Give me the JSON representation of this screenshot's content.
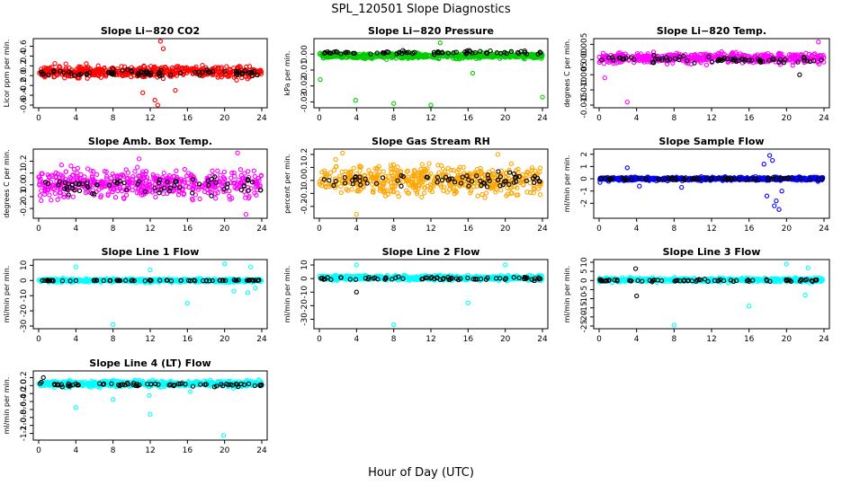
{
  "figure": {
    "title": "SPL_120501  Slope Diagnostics",
    "xlabel": "Hour of Day (UTC)"
  },
  "colors": {
    "black": "#000000",
    "red": "#ff0000",
    "green": "#00cc00",
    "magenta": "#ff00ff",
    "orange": "#ffa500",
    "blue": "#0000ff",
    "cyan": "#00ffff"
  },
  "chart_data": [
    {
      "type": "scatter",
      "title": "Slope Li−820 CO2",
      "ylabel": "Licor ppm per min.",
      "xlim": [
        0,
        24
      ],
      "xticks": [
        0,
        4,
        8,
        12,
        16,
        20,
        24
      ],
      "ylim": [
        -0.6,
        0.7
      ],
      "yticks": [
        -0.6,
        -0.4,
        -0.2,
        0.0,
        0.2,
        0.4,
        0.6
      ],
      "ytick_labels": [
        "-0.6",
        "-0.4",
        "-0.2",
        "0.0",
        "0.2",
        "0.4",
        "0.6"
      ],
      "series": [
        {
          "color": "#ff0000",
          "center": 0.08,
          "spread": 0.2,
          "outliers": [
            [
              13.1,
              0.72
            ],
            [
              13.4,
              0.55
            ],
            [
              12.5,
              -0.5
            ],
            [
              12.8,
              -0.62
            ],
            [
              11.2,
              -0.35
            ],
            [
              14.7,
              -0.3
            ]
          ]
        },
        {
          "color": "#000000",
          "center": 0.06,
          "spread": 0.12,
          "outliers": []
        }
      ]
    },
    {
      "type": "scatter",
      "title": "Slope Li−820 Pressure",
      "ylabel": "kPa per min.",
      "xlim": [
        0,
        24
      ],
      "xticks": [
        0,
        4,
        8,
        12,
        16,
        20,
        24
      ],
      "ylim": [
        -0.032,
        0.008
      ],
      "yticks": [
        -0.03,
        -0.02,
        -0.01,
        0.0
      ],
      "ytick_labels": [
        "-0.03",
        "-0.02",
        "-0.01",
        "0.00"
      ],
      "series": [
        {
          "color": "#00cc00",
          "center": -0.001,
          "spread": 0.003,
          "outliers": [
            [
              3.9,
              -0.029
            ],
            [
              8.0,
              -0.031
            ],
            [
              12.0,
              -0.032
            ],
            [
              24.0,
              -0.027
            ],
            [
              0.1,
              -0.016
            ],
            [
              16.5,
              -0.012
            ],
            [
              13.0,
              0.007
            ]
          ]
        },
        {
          "color": "#000000",
          "center": 0.001,
          "spread": 0.002,
          "outliers": []
        }
      ]
    },
    {
      "type": "scatter",
      "title": "Slope Li−820 Temp.",
      "ylabel": "degrees C per min.",
      "xlim": [
        0,
        24
      ],
      "xticks": [
        0,
        4,
        8,
        12,
        16,
        20,
        24
      ],
      "ylim": [
        -0.015,
        0.006
      ],
      "yticks": [
        -0.015,
        -0.01,
        -0.005,
        0.0,
        0.005
      ],
      "ytick_labels": [
        "-0.015",
        "-0.010",
        "-0.005",
        "0.000",
        "0.005"
      ],
      "series": [
        {
          "color": "#ff00ff",
          "center": 0.0005,
          "spread": 0.0028,
          "outliers": [
            [
              3.0,
              -0.014
            ],
            [
              0.6,
              -0.006
            ],
            [
              23.4,
              0.0058
            ]
          ]
        },
        {
          "color": "#000000",
          "center": 0.0,
          "spread": 0.0018,
          "outliers": [
            [
              21.4,
              -0.005
            ]
          ]
        }
      ]
    },
    {
      "type": "scatter",
      "title": "Slope Amb. Box Temp.",
      "ylabel": "degrees C per min.",
      "xlim": [
        0,
        24
      ],
      "xticks": [
        0,
        4,
        8,
        12,
        16,
        20,
        24
      ],
      "ylim": [
        -0.26,
        0.28
      ],
      "yticks": [
        -0.2,
        -0.1,
        0.0,
        0.1,
        0.2
      ],
      "ytick_labels": [
        "-0.2",
        "-0.1",
        "0.0",
        "0.1",
        "0.2"
      ],
      "series": [
        {
          "color": "#ff00ff",
          "center": 0.01,
          "spread": 0.19,
          "outliers": [
            [
              22.3,
              -0.25
            ],
            [
              21.4,
              0.27
            ],
            [
              10.8,
              0.22
            ]
          ]
        },
        {
          "color": "#000000",
          "center": 0.0,
          "spread": 0.13,
          "outliers": []
        }
      ]
    },
    {
      "type": "scatter",
      "title": "Slope Gas Stream RH",
      "ylabel": "percent per min.",
      "xlim": [
        0,
        24
      ],
      "xticks": [
        0,
        4,
        8,
        12,
        16,
        20,
        24
      ],
      "ylim": [
        -0.27,
        0.22
      ],
      "yticks": [
        -0.2,
        -0.1,
        0.0,
        0.1,
        0.2
      ],
      "ytick_labels": [
        "-0.2",
        "-0.1",
        "0.0",
        "0.1",
        "0.2"
      ],
      "series": [
        {
          "color": "#ffa500",
          "center": 0.0,
          "spread": 0.19,
          "outliers": [
            [
              4.0,
              -0.26
            ],
            [
              2.5,
              0.21
            ],
            [
              19.2,
              0.2
            ]
          ]
        },
        {
          "color": "#000000",
          "center": 0.0,
          "spread": 0.1,
          "outliers": []
        }
      ]
    },
    {
      "type": "scatter",
      "title": "Slope Sample Flow",
      "ylabel": "ml/min per min.",
      "xlim": [
        0,
        24
      ],
      "xticks": [
        0,
        4,
        8,
        12,
        16,
        20,
        24
      ],
      "ylim": [
        -3.0,
        2.2
      ],
      "yticks": [
        -2,
        -1,
        0,
        1,
        2
      ],
      "ytick_labels": [
        "-2",
        "-1",
        "0",
        "1",
        "2"
      ],
      "series": [
        {
          "color": "#0000ff",
          "center": 0.0,
          "spread": 0.25,
          "outliers": [
            [
              18.2,
              1.9
            ],
            [
              18.5,
              1.5
            ],
            [
              17.6,
              1.2
            ],
            [
              18.9,
              -1.8
            ],
            [
              19.2,
              -2.5
            ],
            [
              18.7,
              -2.2
            ],
            [
              17.9,
              -1.4
            ],
            [
              19.5,
              -1.0
            ],
            [
              3.0,
              0.9
            ],
            [
              4.3,
              -0.6
            ],
            [
              8.8,
              -0.7
            ],
            [
              0.1,
              -0.3
            ]
          ]
        },
        {
          "color": "#000000",
          "center": 0.0,
          "spread": 0.15,
          "outliers": []
        }
      ]
    },
    {
      "type": "scatter",
      "title": "Slope Line 1 Flow",
      "ylabel": "ml/min per min.",
      "xlim": [
        0,
        24
      ],
      "xticks": [
        0,
        4,
        8,
        12,
        16,
        20,
        24
      ],
      "ylim": [
        -30,
        12
      ],
      "yticks": [
        -30,
        -20,
        -10,
        0,
        10
      ],
      "ytick_labels": [
        "-30",
        "-20",
        "-10",
        "0",
        "10"
      ],
      "series": [
        {
          "color": "#00ffff",
          "center": 0.0,
          "spread": 2.0,
          "outliers": [
            [
              4.0,
              9.0
            ],
            [
              8.0,
              -29.0
            ],
            [
              16.0,
              -15.0
            ],
            [
              20.0,
              11.0
            ],
            [
              12.0,
              7.0
            ],
            [
              22.5,
              -8.0
            ],
            [
              23.3,
              -5.0
            ],
            [
              21.0,
              -7.0
            ],
            [
              22.8,
              9.0
            ]
          ]
        },
        {
          "color": "#000000",
          "center": 0.0,
          "spread": 0.6,
          "outliers": []
        }
      ]
    },
    {
      "type": "scatter",
      "title": "Slope Line 2 Flow",
      "ylabel": "ml/min per min.",
      "xlim": [
        0,
        24
      ],
      "xticks": [
        0,
        4,
        8,
        12,
        16,
        20,
        24
      ],
      "ylim": [
        -35,
        12
      ],
      "yticks": [
        -30,
        -20,
        -10,
        0,
        10
      ],
      "ytick_labels": [
        "-30",
        "-20",
        "-10",
        "0",
        "10"
      ],
      "series": [
        {
          "color": "#00ffff",
          "center": 0.5,
          "spread": 3.0,
          "outliers": [
            [
              8.0,
              -34.0
            ],
            [
              16.0,
              -18.0
            ],
            [
              20.0,
              10.0
            ],
            [
              4.0,
              10.0
            ]
          ]
        },
        {
          "color": "#000000",
          "center": 0.0,
          "spread": 2.0,
          "outliers": [
            [
              4.0,
              -10.0
            ]
          ]
        }
      ]
    },
    {
      "type": "scatter",
      "title": "Slope Line 3 Flow",
      "ylabel": "ml/min per min.",
      "xlim": [
        0,
        24
      ],
      "xticks": [
        0,
        4,
        8,
        12,
        16,
        20,
        24
      ],
      "ylim": [
        -25,
        10
      ],
      "yticks": [
        -25,
        -20,
        -15,
        -10,
        -5,
        0,
        5,
        10
      ],
      "ytick_labels": [
        "-25",
        "-20",
        "-15",
        "-10",
        "-5",
        "0",
        "5",
        "10"
      ],
      "series": [
        {
          "color": "#00ffff",
          "center": 0.3,
          "spread": 2.0,
          "outliers": [
            [
              8.0,
              -24.5
            ],
            [
              16.0,
              -14.0
            ],
            [
              20.0,
              9.0
            ],
            [
              22.0,
              -8.0
            ],
            [
              22.3,
              7.0
            ]
          ]
        },
        {
          "color": "#000000",
          "center": 0.0,
          "spread": 1.2,
          "outliers": [
            [
              4.0,
              -8.5
            ],
            [
              3.9,
              6.5
            ]
          ]
        }
      ]
    },
    {
      "type": "scatter",
      "title": "Slope Line 4 (LT) Flow",
      "ylabel": "ml/min per min.",
      "xlim": [
        0,
        24
      ],
      "xticks": [
        0,
        4,
        8,
        12,
        16,
        20,
        24
      ],
      "ylim": [
        -1.3,
        0.3
      ],
      "yticks": [
        -1.2,
        -1.0,
        -0.8,
        -0.6,
        -0.4,
        -0.2,
        0.0,
        0.2
      ],
      "ytick_labels": [
        "-1.2",
        "-1.0",
        "-0.8",
        "-0.6",
        "-0.4",
        "-0.2",
        "0.0",
        "0.2"
      ],
      "series": [
        {
          "color": "#00ffff",
          "center": 0.05,
          "spread": 0.12,
          "outliers": [
            [
              4.0,
              -0.55
            ],
            [
              12.0,
              -0.72
            ],
            [
              19.9,
              -1.25
            ],
            [
              8.0,
              -0.35
            ],
            [
              11.9,
              -0.25
            ],
            [
              16.3,
              -0.15
            ]
          ]
        },
        {
          "color": "#000000",
          "center": 0.02,
          "spread": 0.08,
          "outliers": [
            [
              0.5,
              0.2
            ]
          ]
        }
      ]
    }
  ]
}
